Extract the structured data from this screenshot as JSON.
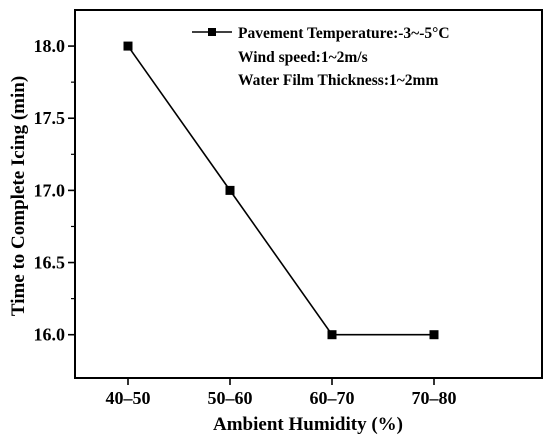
{
  "chart_data": {
    "type": "line",
    "categories": [
      "40–50",
      "50–60",
      "60–70",
      "70–80"
    ],
    "series": [
      {
        "name": "Pavement Temperature:-3~-5°C",
        "values": [
          18.0,
          17.0,
          16.0,
          16.0
        ]
      }
    ],
    "annotations": [
      "Wind speed:1~2m/s",
      "Water Film Thickness:1~2mm"
    ],
    "xlabel": "Ambient Humidity (%)",
    "ylabel": "Time to Complete Icing (min)",
    "ylim": [
      15.7,
      18.25
    ],
    "yticks": [
      16.0,
      16.5,
      17.0,
      17.5,
      18.0
    ],
    "ytick_labels": [
      "16.0",
      "16.5",
      "17.0",
      "17.5",
      "18.0"
    ],
    "grid": false,
    "legend_position": "top-right",
    "colors": {
      "line": "#000000",
      "marker": "#000000"
    },
    "marker": "square"
  }
}
